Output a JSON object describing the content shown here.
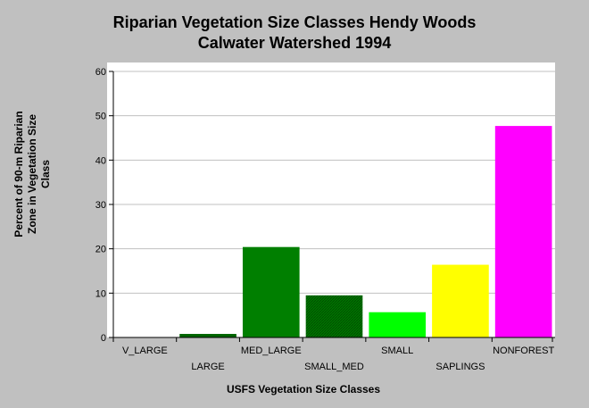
{
  "chart_data": {
    "type": "bar",
    "title": "Riparian Vegetation Size Classes Hendy Woods",
    "subtitle": "Calwater Watershed 1994",
    "xlabel": "USFS Vegetation Size Classes",
    "ylabel_lines": [
      "Percent of 90-m Riparian",
      "Zone in Vegetation Size",
      "Class"
    ],
    "categories": [
      "V_LARGE",
      "LARGE",
      "MED_LARGE",
      "SMALL_MED",
      "SMALL",
      "SAPLINGS",
      "NONFOREST"
    ],
    "values": [
      0,
      0.8,
      20.4,
      9.5,
      5.7,
      16.4,
      47.7
    ],
    "colors": [
      "#006400",
      "#006400",
      "#007f00",
      "#007400",
      "#00ff00",
      "#ffff00",
      "#ff00ff"
    ],
    "hatched": [
      false,
      false,
      false,
      true,
      false,
      false,
      false
    ],
    "ylim": [
      0,
      60
    ],
    "yticks": [
      0,
      10,
      20,
      30,
      40,
      50,
      60
    ],
    "grid": true,
    "legend": "none"
  }
}
